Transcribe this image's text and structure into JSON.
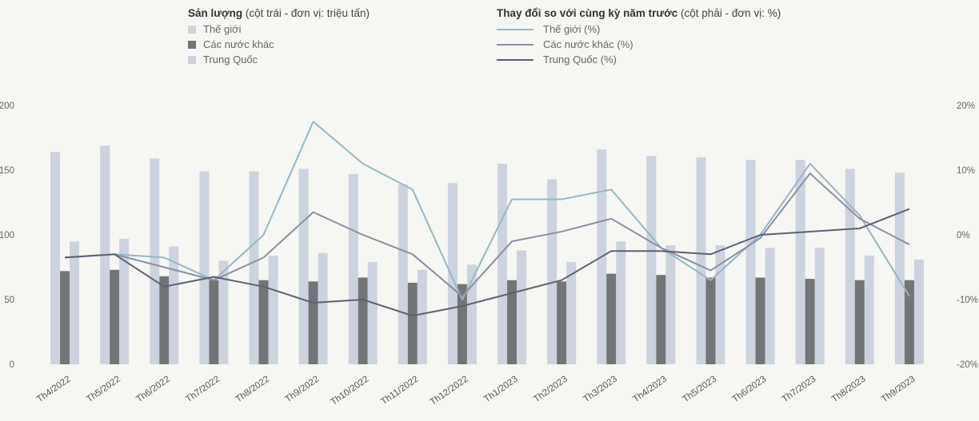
{
  "chart_data": {
    "type": "bar",
    "categories": [
      "Th4/2022",
      "Th5/2022",
      "Th6/2022",
      "Th7/2022",
      "Th8/2022",
      "Th9/2022",
      "Th10/2022",
      "Th11/2022",
      "Th12/2022",
      "Th1/2023",
      "Th2/2023",
      "Th3/2023",
      "Th4/2023",
      "Th5/2023",
      "Th6/2023",
      "Th7/2023",
      "Th8/2023",
      "Th9/2023"
    ],
    "left_axis": {
      "title_bold": "Sản lượng",
      "title_note": "(cột trái - đơn vị: triệu tấn)",
      "ylim": [
        0,
        200
      ],
      "ticks": [
        "0",
        "50",
        "100",
        "150",
        "200"
      ]
    },
    "right_axis": {
      "title_bold": "Thay đổi so với cùng kỳ năm trước",
      "title_note": "(cột phải - đơn vị: %)",
      "ylim": [
        -20,
        20
      ],
      "ticks": [
        "-20%",
        "-10%",
        "0%",
        "10%",
        "20%"
      ]
    },
    "bar_series": [
      {
        "name": "Thế giới",
        "color": "#cdd3de",
        "values": [
          164,
          169,
          159,
          149,
          149,
          151,
          147,
          139,
          140,
          155,
          143,
          166,
          161,
          160,
          158,
          158,
          151,
          148
        ]
      },
      {
        "name": "Các nước khác",
        "color": "#727577",
        "values": [
          72,
          73,
          68,
          65,
          65,
          64,
          67,
          63,
          62,
          65,
          64,
          70,
          69,
          67,
          67,
          66,
          65,
          65
        ]
      },
      {
        "name": "Trung Quốc",
        "color": "#cdd3de",
        "values": [
          95,
          97,
          91,
          80,
          84,
          86,
          79,
          73,
          77,
          88,
          79,
          95,
          92,
          92,
          90,
          90,
          84,
          81
        ]
      }
    ],
    "line_series": [
      {
        "name": "Thế giới (%)",
        "color": "#94b8c6",
        "values": [
          -3.5,
          -3,
          -3.5,
          -7,
          0,
          17.5,
          11,
          7,
          -10,
          5.5,
          5.5,
          7,
          -2,
          -7,
          0,
          11,
          3,
          -9.5
        ]
      },
      {
        "name": "Các nước khác (%)",
        "color": "#8a8fa4",
        "values": [
          -3.5,
          -3,
          -5,
          -7,
          -3.5,
          3.5,
          0,
          -3,
          -9.5,
          -1,
          0.5,
          2.5,
          -2,
          -5.5,
          -0.5,
          9.5,
          2.5,
          -1.5
        ]
      },
      {
        "name": "Trung Quốc (%)",
        "color": "#5c6074",
        "values": [
          -3.5,
          -3,
          -8,
          -6.5,
          -8,
          -10.5,
          -10,
          -12.5,
          -11,
          -9,
          -7,
          -2.5,
          -2.5,
          -3,
          0,
          0.5,
          1,
          4
        ]
      }
    ],
    "grid": false,
    "legend_position": "top"
  }
}
